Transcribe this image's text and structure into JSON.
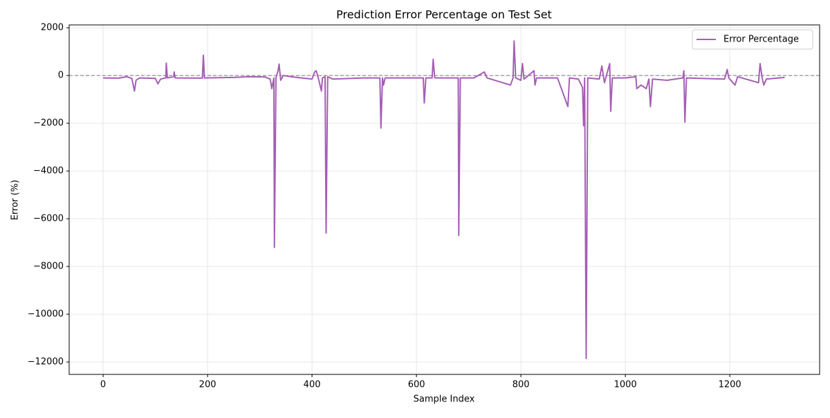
{
  "chart_data": {
    "type": "line",
    "title": "Prediction Error Percentage on Test Set",
    "x_label": "Sample Index",
    "y_label": "Error (%)",
    "x": [
      0,
      30,
      45,
      55,
      60,
      63,
      70,
      100,
      105,
      110,
      120,
      121,
      123,
      135,
      136,
      138,
      190,
      192,
      194,
      250,
      280,
      310,
      320,
      323,
      327,
      328,
      331,
      335,
      337,
      340,
      345,
      360,
      380,
      400,
      405,
      408,
      412,
      418,
      420,
      425,
      427,
      430,
      440,
      500,
      530,
      532,
      535,
      537,
      540,
      600,
      613,
      615,
      618,
      630,
      632,
      635,
      680,
      681,
      684,
      710,
      730,
      735,
      780,
      785,
      787,
      790,
      800,
      803,
      806,
      825,
      827,
      830,
      860,
      870,
      890,
      893,
      910,
      918,
      920,
      922,
      925,
      928,
      950,
      955,
      960,
      970,
      972,
      975,
      1000,
      1020,
      1022,
      1030,
      1040,
      1045,
      1048,
      1052,
      1080,
      1110,
      1112,
      1114,
      1117,
      1190,
      1195,
      1198,
      1210,
      1215,
      1255,
      1258,
      1262,
      1265,
      1270,
      1305
    ],
    "series": [
      {
        "name": "Error Percentage",
        "color": "#a55eb5",
        "values": [
          -100,
          -110,
          -50,
          -120,
          -650,
          -200,
          -100,
          -120,
          -350,
          -150,
          -100,
          520,
          -100,
          -50,
          150,
          -100,
          -110,
          850,
          -100,
          -80,
          -50,
          -60,
          -150,
          -550,
          -100,
          -7200,
          -100,
          200,
          480,
          -200,
          0,
          -50,
          -100,
          -150,
          150,
          200,
          -100,
          -650,
          -100,
          -50,
          -6600,
          -50,
          -150,
          -100,
          -100,
          -2200,
          -100,
          -400,
          -100,
          -100,
          -100,
          -1150,
          -100,
          -100,
          680,
          -100,
          -100,
          -6700,
          -100,
          -100,
          150,
          -100,
          -400,
          -100,
          1450,
          -100,
          -200,
          500,
          -150,
          200,
          -400,
          -100,
          -100,
          -100,
          -1300,
          -100,
          -150,
          -500,
          -2100,
          -100,
          -11850,
          -100,
          -150,
          400,
          -300,
          500,
          -1500,
          -100,
          -100,
          -50,
          -550,
          -400,
          -550,
          -150,
          -1300,
          -150,
          -200,
          -100,
          200,
          -1950,
          -100,
          -150,
          250,
          -100,
          -400,
          -50,
          -300,
          500,
          -100,
          -400,
          -150,
          -80
        ]
      }
    ],
    "hline": 0,
    "xlim": [
      -65,
      1372
    ],
    "ylim": [
      -12520,
      2120
    ],
    "xticks": [
      0,
      200,
      400,
      600,
      800,
      1000,
      1200
    ],
    "yticks": [
      2000,
      0,
      {
        "value": -2000,
        "label": "−2000"
      },
      {
        "value": -4000,
        "label": "−4000"
      },
      {
        "value": -6000,
        "label": "−6000"
      },
      {
        "value": -8000,
        "label": "−8000"
      },
      {
        "value": -10000,
        "label": "−10000"
      },
      {
        "value": -12000,
        "label": "−12000"
      }
    ],
    "grid": true,
    "legend": "upper right"
  }
}
